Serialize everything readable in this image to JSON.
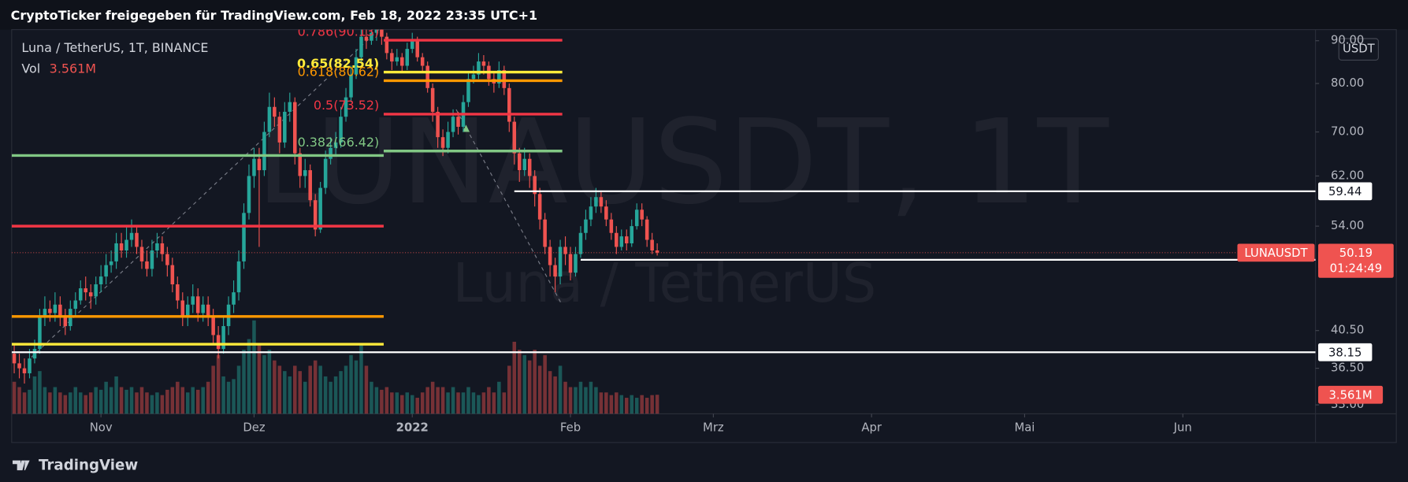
{
  "header": "CryptoTicker freigegeben für TradingView.com, Feb 18, 2022 23:35 UTC+1",
  "footer": "TradingView",
  "chart_data": {
    "type": "candlestick",
    "legend": "Luna / TetherUS, 1T, BINANCE",
    "watermark": "LUNAUSDT, 1T",
    "watermark_sub": "Luna / TetherUS",
    "symbol": "LUNAUSDT",
    "currency": "USDT",
    "countdown": "01:24:49",
    "volume_name": "Vol",
    "last_volume_label": "3.561M",
    "up_color": "#26a69a",
    "down_color": "#ef5350",
    "log_y": true,
    "xlim": [
      -0.5,
      255
    ],
    "xticks": [
      {
        "value": 17,
        "label": "Nov"
      },
      {
        "value": 47,
        "label": "Dez"
      },
      {
        "value": 78,
        "label": "2022"
      },
      {
        "value": 109,
        "label": "Feb"
      },
      {
        "value": 137,
        "label": "Mrz"
      },
      {
        "value": 168,
        "label": "Apr"
      },
      {
        "value": 198,
        "label": "Mai"
      },
      {
        "value": 229,
        "label": "Jun"
      }
    ],
    "ylim": [
      32.2,
      92.8
    ],
    "yticks": [
      {
        "value": 33,
        "label": "33.00"
      },
      {
        "value": 36.5,
        "label": "36.50"
      },
      {
        "value": 40.5,
        "label": "40.50"
      },
      {
        "value": 54,
        "label": "54.00"
      },
      {
        "value": 62,
        "label": "62.00"
      },
      {
        "value": 70,
        "label": "70.00"
      },
      {
        "value": 80,
        "label": "80.00"
      },
      {
        "value": 90,
        "label": "90.00"
      }
    ],
    "vol_lim": [
      0,
      72
    ],
    "open": [
      38,
      37,
      36.5,
      36,
      37.5,
      38.5,
      42,
      43,
      42.5,
      43.5,
      42,
      41,
      43,
      44,
      45.5,
      45,
      44.5,
      46,
      47,
      48.5,
      49,
      51.5,
      50.5,
      52,
      53,
      51,
      49,
      48,
      50.5,
      51.5,
      50,
      48.5,
      46,
      44,
      42,
      43.5,
      44.5,
      42.5,
      43.5,
      42,
      40,
      38.5,
      41,
      43.5,
      45,
      49,
      56,
      62,
      65,
      63,
      70,
      75,
      73,
      68,
      74,
      76,
      66,
      62,
      63,
      58,
      53.5,
      60,
      65,
      67,
      68,
      73,
      77,
      82,
      86,
      91,
      90,
      92,
      93,
      91,
      87,
      85,
      86,
      84,
      88,
      90,
      86,
      84,
      79,
      74,
      69,
      67,
      70,
      73,
      71,
      76,
      81,
      82,
      85,
      84,
      81,
      80,
      83,
      79,
      72,
      66,
      63,
      65,
      62,
      59,
      55,
      51,
      48.5,
      47,
      51,
      50,
      47.5,
      50,
      53,
      55,
      57,
      58.5,
      57,
      55,
      53,
      51,
      52.5,
      51.5,
      54,
      56.5,
      55,
      52,
      50.5
    ],
    "high": [
      39,
      38,
      37.5,
      38.5,
      39.5,
      43,
      44.5,
      44,
      45,
      44.5,
      43,
      44,
      45,
      46.5,
      47,
      46,
      47,
      48.5,
      50,
      50.5,
      53,
      53,
      54,
      55,
      54,
      52,
      50.5,
      52,
      53,
      52.5,
      51,
      49.5,
      47,
      45,
      44.5,
      46,
      45.5,
      44.5,
      44.5,
      43,
      41,
      42,
      44.5,
      46.5,
      50.5,
      57.5,
      64,
      67,
      67,
      72,
      78,
      77,
      74,
      76,
      78,
      77,
      67,
      65,
      64,
      59,
      61,
      66.5,
      69,
      70,
      75,
      79,
      84,
      88,
      93,
      93,
      94,
      95,
      94,
      92,
      88,
      88,
      87,
      89.5,
      92,
      91,
      87,
      85,
      80,
      75,
      70.5,
      72,
      74.5,
      74,
      77.5,
      82.5,
      84,
      87,
      86.5,
      85,
      82.5,
      85,
      84,
      80,
      73,
      67,
      67,
      66,
      63,
      60,
      56,
      52,
      49.5,
      52,
      52.5,
      51,
      51,
      54,
      56.5,
      58.5,
      60,
      59.5,
      58,
      56,
      54,
      53.5,
      53.5,
      55,
      57.5,
      57.5,
      55.5,
      53,
      51.5
    ],
    "low": [
      36,
      35.5,
      35,
      35.5,
      37,
      38,
      41,
      41.5,
      41.5,
      41,
      40,
      40.5,
      42,
      43.5,
      44,
      43,
      43.5,
      45,
      46,
      47.5,
      48,
      49.5,
      49.5,
      51,
      50,
      48,
      47,
      47,
      49.5,
      49,
      47,
      45,
      43,
      41,
      41,
      42.5,
      41.5,
      41.5,
      41,
      39,
      37.5,
      38,
      40,
      42.5,
      44,
      48,
      55,
      60,
      51,
      62,
      69,
      71,
      66,
      67,
      72,
      64,
      60,
      60,
      57,
      52.5,
      53,
      59,
      64,
      65.5,
      67,
      72,
      76,
      81,
      85,
      88,
      89,
      90,
      89,
      85.5,
      83,
      84,
      82.5,
      83,
      87,
      85,
      82.5,
      78,
      72,
      67,
      65.5,
      66,
      69,
      69.5,
      70,
      75,
      80,
      81,
      82,
      79.5,
      78,
      79,
      77.5,
      70,
      64,
      61,
      62,
      60,
      57,
      53.5,
      50,
      47,
      45,
      46,
      48.5,
      46.5,
      47,
      49.5,
      52,
      54,
      56,
      56,
      54,
      52,
      50,
      50.5,
      50.5,
      51,
      53.5,
      54,
      51,
      50,
      49.8
    ],
    "close": [
      37,
      36.5,
      36,
      37.5,
      38.5,
      42,
      43,
      42.5,
      43.5,
      42,
      41,
      43,
      44,
      45.5,
      45,
      44.5,
      46,
      47,
      48.5,
      49,
      51.5,
      50.5,
      52,
      53,
      51,
      49,
      48,
      50.5,
      51.5,
      50,
      48.5,
      46,
      44,
      42,
      43.5,
      44.5,
      42.5,
      43.5,
      42,
      40,
      38.5,
      41,
      43.5,
      45,
      49,
      56,
      62,
      65,
      63,
      70,
      75,
      73,
      68,
      74,
      76,
      66,
      62,
      63,
      58,
      53.5,
      60,
      65,
      67,
      68,
      73,
      77,
      82,
      86,
      91,
      90,
      92,
      93,
      91,
      87,
      85,
      86,
      84,
      88,
      90,
      86,
      84,
      79,
      74,
      69,
      67,
      70,
      73,
      71,
      76,
      81,
      82,
      85,
      84,
      81,
      80,
      83,
      79,
      72,
      66,
      63,
      65,
      62,
      59,
      55,
      51,
      48.5,
      47,
      51,
      50,
      47.5,
      50,
      53,
      55,
      57,
      58.5,
      57,
      55,
      53,
      51,
      52.5,
      51.5,
      54,
      56.5,
      55,
      52,
      50.5,
      50.19
    ],
    "volume": [
      6,
      5,
      4,
      4.5,
      7,
      8,
      5,
      4,
      5,
      4,
      3.5,
      4,
      5,
      4,
      3.5,
      4,
      5,
      4.5,
      6,
      5,
      7,
      5,
      4.5,
      5,
      4,
      5,
      4,
      3.5,
      4,
      3.5,
      4.5,
      5,
      6,
      5,
      4,
      5,
      4.5,
      5,
      6,
      9,
      11,
      7,
      6,
      6.5,
      9,
      12,
      14,
      17.5,
      13,
      11,
      12,
      10,
      9,
      8,
      7,
      9,
      8,
      6,
      9,
      10,
      9,
      7,
      6,
      7,
      8,
      9,
      11,
      10,
      13,
      9,
      6,
      5,
      4.5,
      5,
      4,
      4,
      3.5,
      4,
      3.5,
      3,
      4,
      5,
      6,
      5,
      5,
      4,
      5,
      4,
      4,
      5,
      4,
      3.5,
      4,
      5,
      4,
      6,
      4,
      9,
      13.5,
      12,
      11,
      10,
      12,
      9,
      11,
      8,
      7,
      9,
      6,
      5,
      5,
      6,
      5,
      6,
      5,
      4,
      4,
      3.5,
      4,
      3.5,
      3,
      3.5,
      3,
      3.5,
      3,
      3.5,
      3.561
    ],
    "price_line_color": "#ffffff",
    "price_lines": [
      {
        "value": 59.44,
        "from": 98
      },
      {
        "value": 49.22,
        "from": 111
      },
      {
        "value": 38.15,
        "from": -0.5
      }
    ],
    "fib": {
      "from": 72.4,
      "to": 107.4,
      "levels": [
        {
          "value": 90.13,
          "label": "0.786(90.13)",
          "color": "#f23645"
        },
        {
          "value": 82.54,
          "label": "0.65(82.54)",
          "color": "#ffeb3b"
        },
        {
          "value": 80.62,
          "label": "0.618(80.62)",
          "color": "#ff9800"
        },
        {
          "value": 73.52,
          "label": "0.5(73.52)",
          "color": "#f23645"
        },
        {
          "value": 66.42,
          "label": "0.382(66.42)",
          "color": "#81c784"
        }
      ]
    },
    "levels": {
      "from": -0.5,
      "to": 72.4,
      "lines": [
        {
          "value": 65.6,
          "color": "#81c784"
        },
        {
          "value": 54,
          "color": "#f23645"
        },
        {
          "value": 42.1,
          "color": "#ff9800"
        },
        {
          "value": 39,
          "color": "#ffeb3b"
        }
      ]
    }
  }
}
